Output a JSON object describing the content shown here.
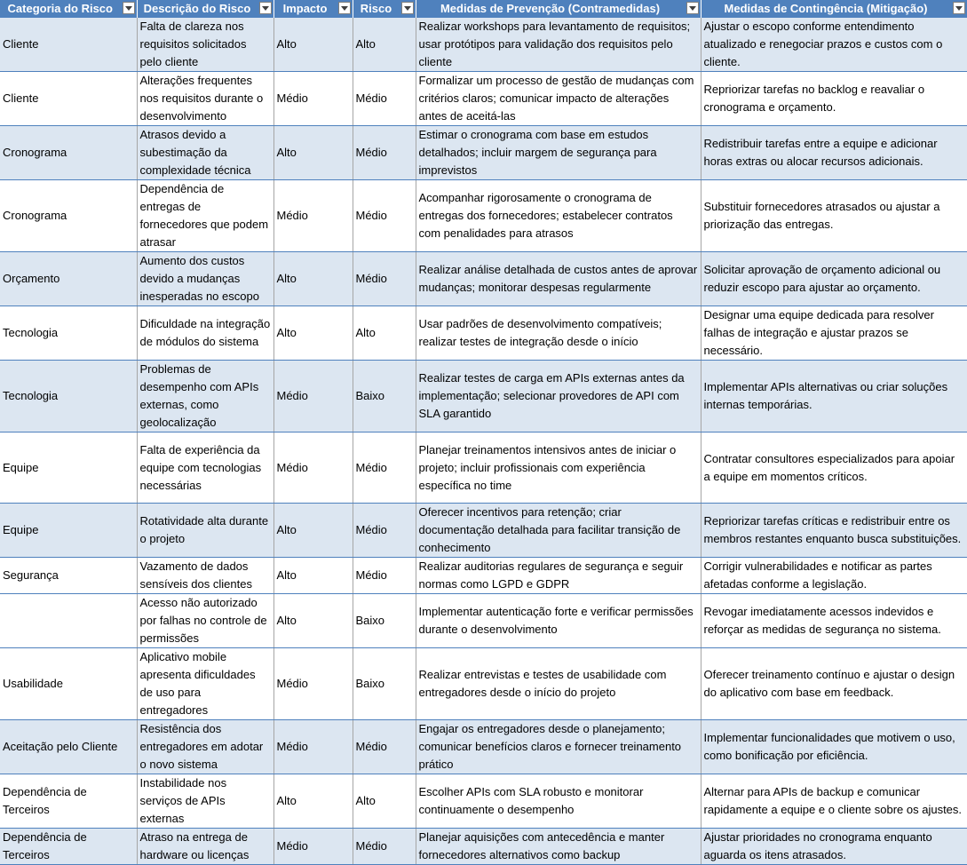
{
  "headers": [
    "Categoria do Risco",
    "Descrição do Risco",
    "Impacto",
    "Risco",
    "Medidas de Prevenção (Contramedidas)",
    "Medidas de Contingência (Mitigação)"
  ],
  "rows": [
    {
      "categoria": "Cliente",
      "descricao": "Falta de clareza nos requisitos solicitados pelo cliente",
      "impacto": "Alto",
      "risco": "Alto",
      "prevencao": "Realizar workshops para levantamento de requisitos; usar protótipos para validação dos requisitos pelo cliente",
      "contingencia": "Ajustar o escopo conforme entendimento atualizado e renegociar prazos e custos com o cliente."
    },
    {
      "categoria": "Cliente",
      "descricao": "Alterações frequentes nos requisitos durante o desenvolvimento",
      "impacto": "Médio",
      "risco": "Médio",
      "prevencao": "Formalizar um processo de gestão de mudanças com critérios claros; comunicar impacto de alterações antes de aceitá-las",
      "contingencia": "Repriorizar tarefas no backlog e reavaliar o cronograma e orçamento."
    },
    {
      "categoria": "Cronograma",
      "descricao": "Atrasos devido a subestimação da complexidade técnica",
      "impacto": "Alto",
      "risco": "Médio",
      "prevencao": "Estimar o cronograma com base em estudos detalhados; incluir margem de segurança para imprevistos",
      "contingencia": "Redistribuir tarefas entre a equipe e adicionar horas extras ou alocar recursos adicionais."
    },
    {
      "categoria": "Cronograma",
      "descricao": "Dependência de entregas de fornecedores que podem atrasar",
      "impacto": "Médio",
      "risco": "Médio",
      "prevencao": "Acompanhar rigorosamente o cronograma de entregas dos fornecedores; estabelecer contratos com penalidades para atrasos",
      "contingencia": "Substituir fornecedores atrasados ou ajustar a priorização das entregas."
    },
    {
      "categoria": "Orçamento",
      "descricao": "Aumento dos custos devido a mudanças inesperadas no escopo",
      "impacto": "Alto",
      "risco": "Médio",
      "prevencao": "Realizar análise detalhada de custos antes de aprovar mudanças; monitorar despesas regularmente",
      "contingencia": "Solicitar aprovação de orçamento adicional ou reduzir escopo para ajustar ao orçamento."
    },
    {
      "categoria": "Tecnologia",
      "descricao": "Dificuldade na integração de módulos do sistema",
      "impacto": "Alto",
      "risco": "Alto",
      "prevencao": "Usar padrões de desenvolvimento compatíveis; realizar testes de integração desde o início",
      "contingencia": "Designar uma equipe dedicada para resolver falhas de integração e ajustar prazos se necessário."
    },
    {
      "categoria": "Tecnologia",
      "descricao": "Problemas de desempenho com APIs externas, como geolocalização",
      "impacto": "Médio",
      "risco": "Baixo",
      "prevencao": "Realizar testes de carga em APIs externas antes da implementação; selecionar provedores de API com SLA garantido",
      "contingencia": "Implementar APIs alternativas ou criar soluções internas temporárias."
    },
    {
      "categoria": "Equipe",
      "descricao": "Falta de experiência da equipe com tecnologias necessárias",
      "impacto": "Médio",
      "risco": "Médio",
      "prevencao": "Planejar treinamentos intensivos antes de iniciar o projeto; incluir profissionais com experiência específica no time",
      "contingencia": "Contratar consultores especializados para apoiar a equipe em momentos críticos."
    },
    {
      "categoria": "Equipe",
      "descricao": "Rotatividade alta durante o projeto",
      "impacto": "Alto",
      "risco": "Médio",
      "prevencao": "Oferecer incentivos para retenção; criar documentação detalhada para facilitar transição de conhecimento",
      "contingencia": "Repriorizar tarefas críticas e redistribuir entre os membros restantes enquanto busca substituições."
    },
    {
      "categoria": "Segurança",
      "descricao": "Vazamento de dados sensíveis dos clientes",
      "impacto": "Alto",
      "risco": "Médio",
      "prevencao": "Realizar auditorias regulares de segurança e seguir normas como LGPD e GDPR",
      "contingencia": "Corrigir vulnerabilidades e notificar as partes afetadas conforme a legislação."
    },
    {
      "categoria": "",
      "descricao": "Acesso não autorizado por falhas no controle de permissões",
      "impacto": "Alto",
      "risco": "Baixo",
      "prevencao": "Implementar autenticação forte e verificar permissões durante o desenvolvimento",
      "contingencia": "Revogar imediatamente acessos indevidos e reforçar as medidas de segurança no sistema."
    },
    {
      "categoria": "Usabilidade",
      "descricao": "Aplicativo mobile apresenta dificuldades de uso para entregadores",
      "impacto": "Médio",
      "risco": "Baixo",
      "prevencao": "Realizar entrevistas e testes de usabilidade com entregadores desde o início do projeto",
      "contingencia": "Oferecer treinamento contínuo e ajustar o design do aplicativo com base em feedback."
    },
    {
      "categoria": "Aceitação pelo Cliente",
      "descricao": "Resistência dos entregadores em adotar o novo sistema",
      "impacto": "Médio",
      "risco": "Médio",
      "prevencao": "Engajar os entregadores desde o planejamento; comunicar benefícios claros e fornecer treinamento prático",
      "contingencia": "Implementar funcionalidades que motivem o uso, como bonificação por eficiência."
    },
    {
      "categoria": "Dependência de Terceiros",
      "descricao": "Instabilidade nos serviços de APIs externas",
      "impacto": "Alto",
      "risco": "Alto",
      "prevencao": "Escolher APIs com SLA robusto e monitorar continuamente o desempenho",
      "contingencia": "Alternar para APIs de backup e comunicar rapidamente a equipe e o cliente sobre os ajustes."
    },
    {
      "categoria": "Dependência de Terceiros",
      "descricao": "Atraso na entrega de hardware ou licenças",
      "impacto": "Médio",
      "risco": "Médio",
      "prevencao": "Planejar aquisições com antecedência e manter fornecedores alternativos como backup",
      "contingencia": "Ajustar prioridades no cronograma enquanto aguarda os itens atrasados."
    }
  ]
}
